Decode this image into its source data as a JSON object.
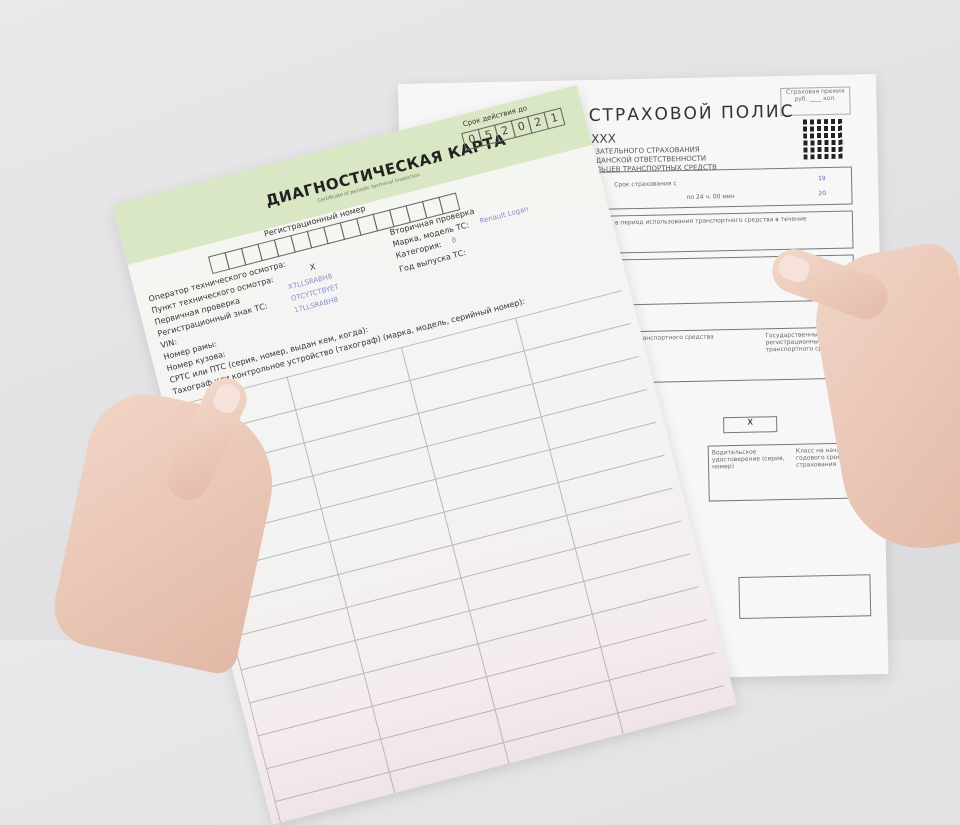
{
  "policy": {
    "title": "СТРАХОВОЙ ПОЛИС",
    "series": "XXX",
    "subtitle_lines": [
      "ЗАТЕЛЬНОГО СТРАХОВАНИЯ",
      "ДАНСКОЙ ОТВЕТСТВЕННОСТИ",
      "ЛЬЦЕВ ТРАНСПОРТНЫХ СРЕДСТВ"
    ],
    "premium_label": "Страховая премия",
    "premium_units": "руб. ____ коп.",
    "term_label": "Срок страхования с",
    "term_to": "по 24 ч. 00 мин",
    "year_from": "19",
    "year_to": "20",
    "usage_label": "в период использования транспортного средства в течение",
    "vehicle_label": "транспортного средства",
    "state_reg_label": "Государственный регистрационный знак транспортного средства",
    "checkbox_mark": "X",
    "license_label": "Водительское удостоверение (серия, номер)",
    "class_label": "Класс на начало годового срока страхования"
  },
  "diag": {
    "title": "ДИАГНОСТИЧЕСКАЯ КАРТА",
    "cert": "Certificate of periodic technical inspection",
    "valid_until_label": "Срок действия до",
    "valid_until_digits": [
      "0",
      "5",
      "2",
      "0",
      "2",
      "1"
    ],
    "reg_number_label": "Регистрационный номер",
    "operator_label": "Оператор технического осмотра:",
    "point_label": "Пункт технического осмотра:",
    "primary_label": "Первичная проверка",
    "primary_mark": "X",
    "secondary_label": "Вторичная проверка",
    "reg_sign_label": "Регистрационный знак ТС:",
    "vin_label": "VIN:",
    "vin_value": "X7LLSRABH8",
    "frame_label": "Номер рамы:",
    "frame_value": "OTCYTCTBYET",
    "body_label": "Номер кузова:",
    "body_value": "17LLSRABH8",
    "make_label": "Марка, модель ТС:",
    "make_value": "Renault Logan",
    "category_label": "Категория:",
    "category_value": "B",
    "year_label": "Год выпуска ТС:",
    "srts_label": "СРТС или ПТС (серия, номер, выдан кем, когда):",
    "tacho_label": "Тахограф или контрольное устройство (тахограф) (марка, модель, серийный номер):"
  }
}
